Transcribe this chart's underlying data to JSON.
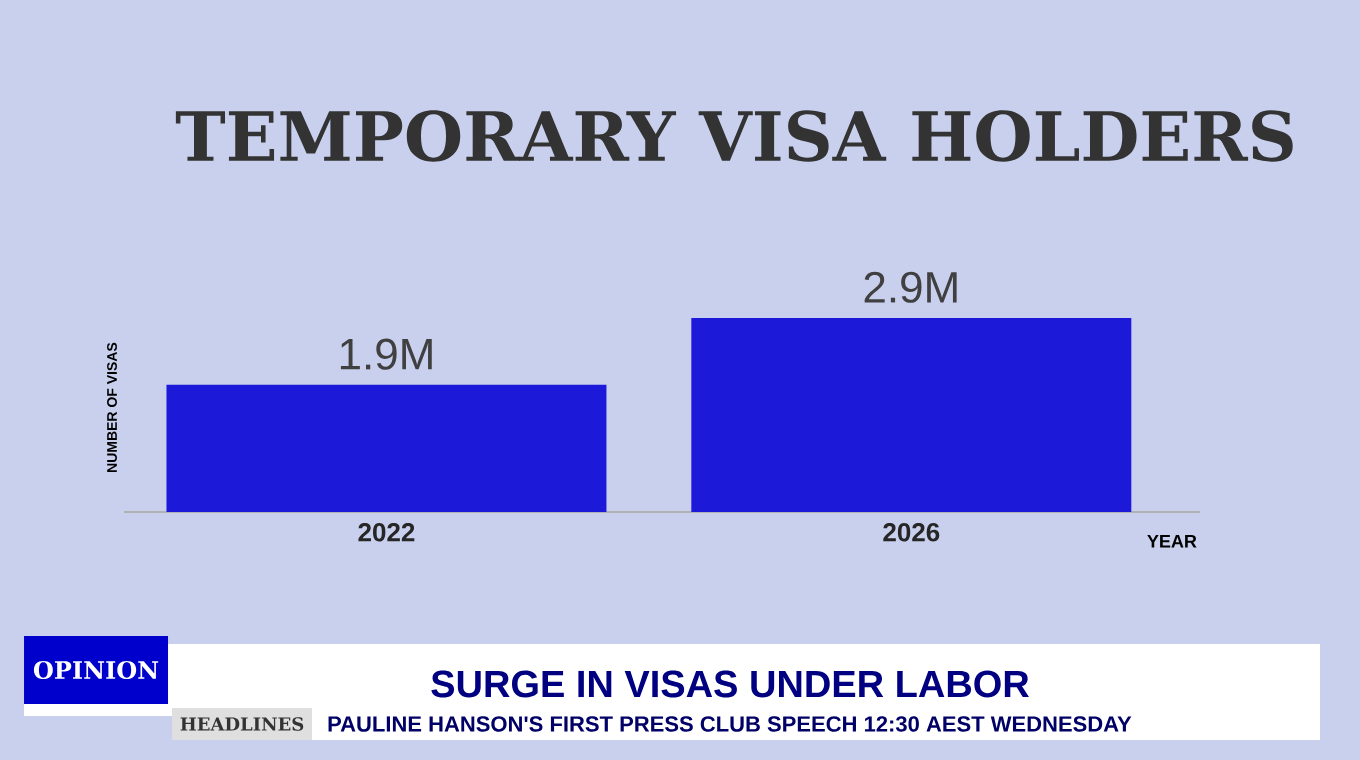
{
  "chart_data": {
    "type": "bar",
    "title": "TEMPORARY VISA HOLDERS",
    "xlabel": "YEAR",
    "ylabel": "NUMBER OF VISAS",
    "categories": [
      "2022",
      "2026"
    ],
    "values": [
      1.9,
      2.9
    ],
    "value_labels": [
      "1.9M",
      "2.9M"
    ],
    "color": "#1c1ad8",
    "tick_labels": "x",
    "annotations": [
      "OPINION",
      "SURGE IN VISAS UNDER LABOR",
      "HEADLINES",
      "PAULINE HANSON'S FIRST PRESS CLUB SPEECH 12:30 AEST WEDNESDAY"
    ]
  }
}
